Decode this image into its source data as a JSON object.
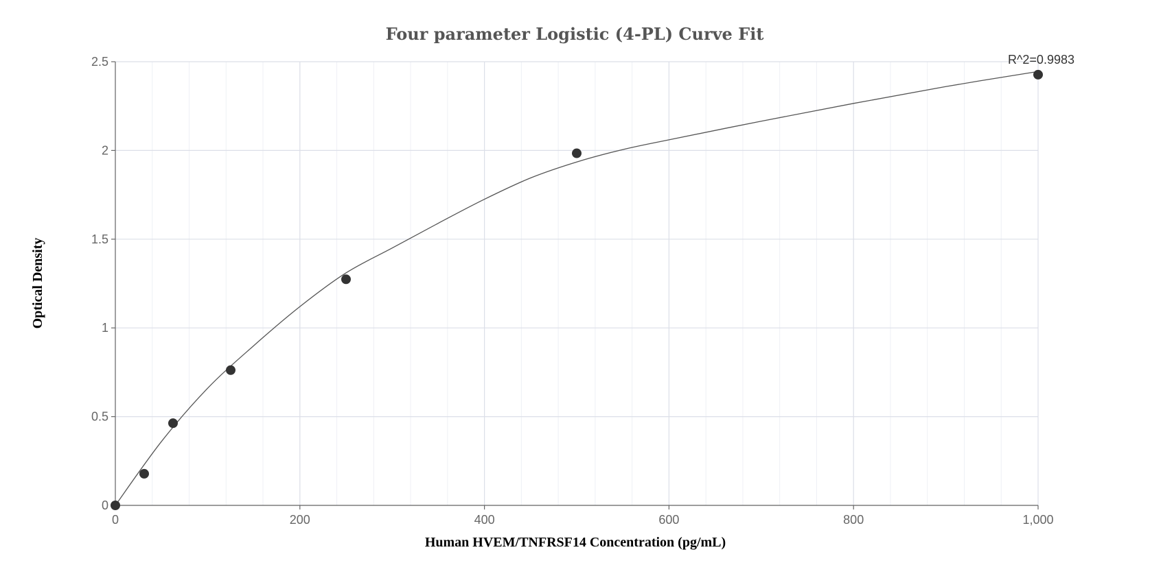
{
  "chart_data": {
    "type": "scatter",
    "title": "Four parameter Logistic (4-PL) Curve Fit",
    "xlabel": "Human HVEM/TNFRSF14 Concentration (pg/mL)",
    "ylabel": "Optical Density",
    "xlim": [
      0,
      1000
    ],
    "ylim": [
      0,
      2.5
    ],
    "x_ticks": [
      0,
      200,
      400,
      600,
      800,
      1000
    ],
    "x_tick_labels": [
      "0",
      "200",
      "400",
      "600",
      "800",
      "1,000"
    ],
    "y_ticks": [
      0,
      0.5,
      1,
      1.5,
      2,
      2.5
    ],
    "y_tick_labels": [
      "0",
      "0.5",
      "1",
      "1.5",
      "2",
      "2.5"
    ],
    "grid": true,
    "series": [
      {
        "points": [
          {
            "x": 0,
            "y": 0
          },
          {
            "x": 31.25,
            "y": 0.178
          },
          {
            "x": 62.5,
            "y": 0.463
          },
          {
            "x": 125,
            "y": 0.762
          },
          {
            "x": 250,
            "y": 1.274
          },
          {
            "x": 500,
            "y": 1.984
          },
          {
            "x": 1000,
            "y": 2.427
          }
        ],
        "color": "#333333"
      }
    ],
    "fit_curve": {
      "points": [
        {
          "x": 0,
          "y": 0
        },
        {
          "x": 50,
          "y": 0.36
        },
        {
          "x": 100,
          "y": 0.66
        },
        {
          "x": 150,
          "y": 0.9
        },
        {
          "x": 200,
          "y": 1.12
        },
        {
          "x": 250,
          "y": 1.31
        },
        {
          "x": 300,
          "y": 1.45
        },
        {
          "x": 350,
          "y": 1.59
        },
        {
          "x": 400,
          "y": 1.725
        },
        {
          "x": 450,
          "y": 1.845
        },
        {
          "x": 500,
          "y": 1.935
        },
        {
          "x": 550,
          "y": 2.005
        },
        {
          "x": 600,
          "y": 2.06
        },
        {
          "x": 700,
          "y": 2.165
        },
        {
          "x": 800,
          "y": 2.265
        },
        {
          "x": 900,
          "y": 2.36
        },
        {
          "x": 1000,
          "y": 2.445
        }
      ],
      "color": "#555555"
    },
    "annotation": {
      "text": "R^2=0.9983",
      "x": 1000,
      "y": 2.427
    }
  }
}
